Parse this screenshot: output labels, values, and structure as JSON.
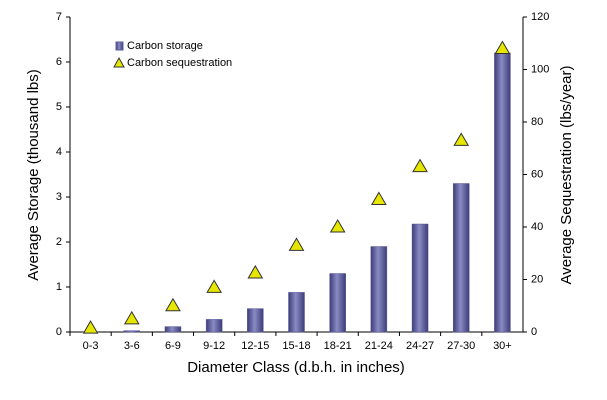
{
  "chart_data": {
    "type": "bar_triangle",
    "x_label": "Diameter Class (d.b.h. in inches)",
    "y_label": "Average Storage (thousand lbs)",
    "y2_label": "Average Sequestration (lbs/year)",
    "categories": [
      "0-3",
      "3-6",
      "6-9",
      "9-12",
      "12-15",
      "15-18",
      "18-21",
      "21-24",
      "24-27",
      "27-30",
      "30+"
    ],
    "series": [
      {
        "name": "Carbon storage",
        "color": "#5c5c9c",
        "values": [
          0.01,
          0.03,
          0.12,
          0.28,
          0.52,
          0.88,
          1.3,
          1.9,
          2.4,
          3.3,
          6.2
        ]
      },
      {
        "name": "Carbon sequestration",
        "color": "#e6e600",
        "axis": "y2",
        "values": [
          1.5,
          5,
          10,
          17,
          22.5,
          33,
          40,
          50.5,
          63,
          73,
          108
        ]
      }
    ],
    "ylim": [
      0,
      7
    ],
    "yticks": [
      0,
      1,
      2,
      3,
      4,
      5,
      6,
      7
    ],
    "y2lim": [
      0,
      120
    ],
    "y2ticks": [
      0,
      20,
      40,
      60,
      80,
      100,
      120
    ],
    "grid": false
  }
}
